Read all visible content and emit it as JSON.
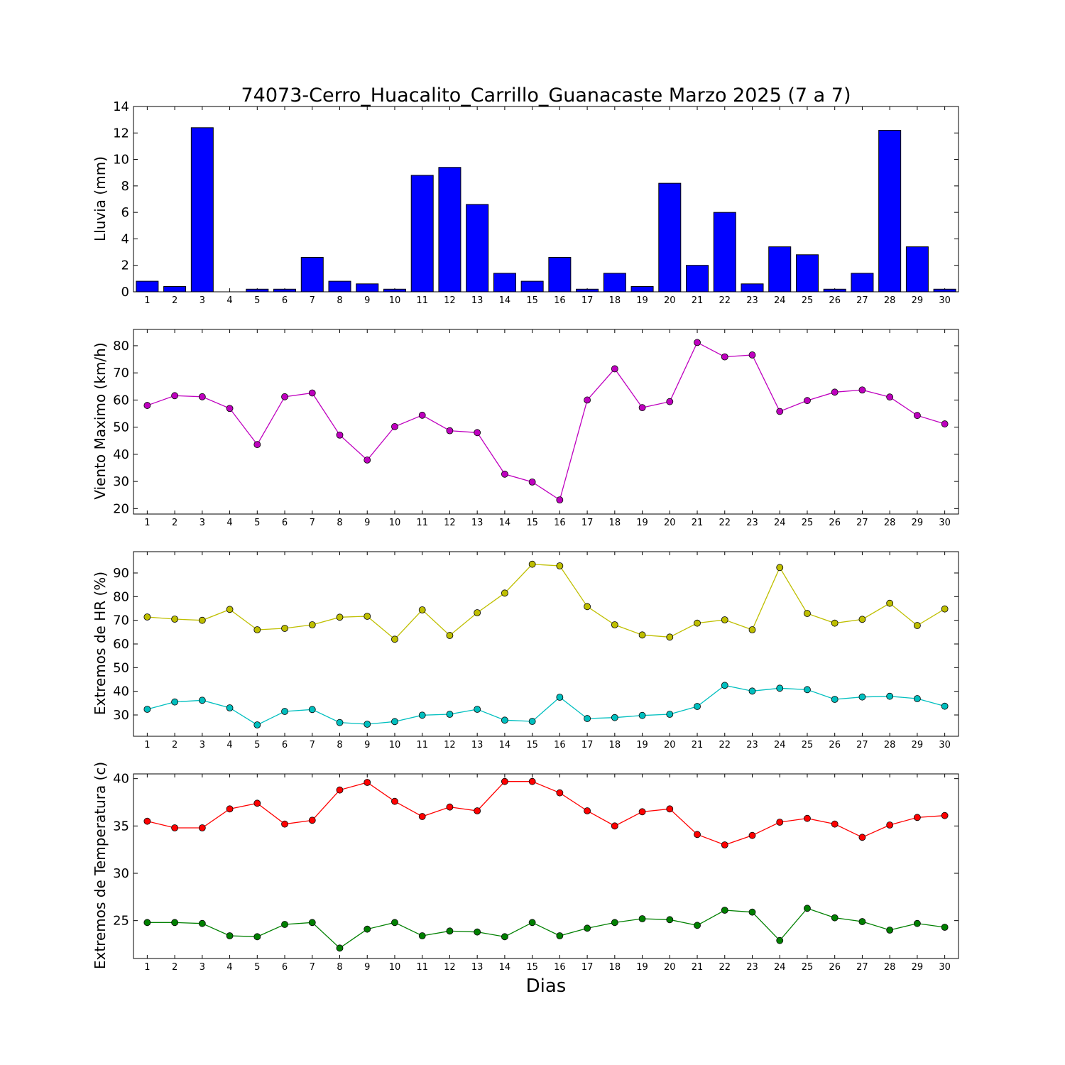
{
  "chart_data": [
    {
      "type": "bar",
      "title": "74073-Cerro_Huacalito_Carrillo_Guanacaste Marzo 2025  (7 a 7)",
      "ylabel": "Lluvia (mm)",
      "xlabel": "",
      "categories": [
        "1",
        "2",
        "3",
        "4",
        "5",
        "6",
        "7",
        "8",
        "9",
        "10",
        "11",
        "12",
        "13",
        "14",
        "15",
        "16",
        "17",
        "18",
        "19",
        "20",
        "21",
        "22",
        "23",
        "24",
        "25",
        "26",
        "27",
        "28",
        "29",
        "30"
      ],
      "values": [
        0.8,
        0.4,
        12.4,
        0.0,
        0.2,
        0.2,
        2.6,
        0.8,
        0.6,
        0.2,
        8.8,
        9.4,
        6.6,
        1.4,
        0.8,
        2.6,
        0.2,
        1.4,
        0.4,
        8.2,
        2.0,
        6.0,
        0.6,
        3.4,
        2.8,
        0.2,
        1.4,
        12.2,
        3.4,
        0.2
      ],
      "ylim": [
        0,
        14
      ],
      "yticks": [
        "0",
        "2",
        "4",
        "6",
        "8",
        "10",
        "12",
        "14"
      ],
      "ytick_values": [
        0,
        2,
        4,
        6,
        8,
        10,
        12,
        14
      ],
      "color": "#0000ff",
      "grid": false
    },
    {
      "type": "line",
      "title": "",
      "ylabel": "Viento Maximo (km/h)",
      "xlabel": "",
      "categories": [
        "1",
        "2",
        "3",
        "4",
        "5",
        "6",
        "7",
        "8",
        "9",
        "10",
        "11",
        "12",
        "13",
        "14",
        "15",
        "16",
        "17",
        "18",
        "19",
        "20",
        "21",
        "22",
        "23",
        "24",
        "25",
        "26",
        "27",
        "28",
        "29",
        "30"
      ],
      "series": [
        {
          "color": "#bf00bf",
          "values": [
            58.0,
            61.6,
            61.2,
            56.9,
            43.6,
            61.2,
            62.6,
            47.1,
            37.9,
            50.2,
            54.4,
            48.7,
            48.0,
            32.7,
            29.8,
            23.2,
            60.0,
            71.5,
            57.2,
            59.4,
            81.2,
            75.9,
            76.6,
            55.8,
            59.8,
            62.9,
            63.7,
            61.1,
            54.3,
            51.2
          ]
        }
      ],
      "ylim": [
        18,
        86
      ],
      "yticks": [
        "20",
        "30",
        "40",
        "50",
        "60",
        "70",
        "80"
      ],
      "ytick_values": [
        20,
        30,
        40,
        50,
        60,
        70,
        80
      ],
      "grid": false
    },
    {
      "type": "line",
      "title": "",
      "ylabel": "Extremos de HR (%)",
      "xlabel": "",
      "categories": [
        "1",
        "2",
        "3",
        "4",
        "5",
        "6",
        "7",
        "8",
        "9",
        "10",
        "11",
        "12",
        "13",
        "14",
        "15",
        "16",
        "17",
        "18",
        "19",
        "20",
        "21",
        "22",
        "23",
        "24",
        "25",
        "26",
        "27",
        "28",
        "29",
        "30"
      ],
      "series": [
        {
          "color": "#bfbf00",
          "values": [
            71.4,
            70.5,
            70.0,
            74.6,
            66.0,
            66.6,
            68.1,
            71.3,
            71.7,
            62.0,
            74.4,
            63.6,
            73.2,
            81.5,
            93.7,
            93.0,
            75.8,
            68.1,
            63.8,
            62.9,
            68.8,
            70.2,
            66.0,
            92.3,
            72.9,
            68.8,
            70.4,
            77.2,
            67.8,
            74.8
          ]
        },
        {
          "color": "#00bfbf",
          "values": [
            32.4,
            35.5,
            36.2,
            33.0,
            25.8,
            31.5,
            32.3,
            26.8,
            26.1,
            27.2,
            29.9,
            30.3,
            32.4,
            27.8,
            27.3,
            37.5,
            28.5,
            28.9,
            29.8,
            30.3,
            33.6,
            42.5,
            40.1,
            41.3,
            40.7,
            36.6,
            37.6,
            37.9,
            36.9,
            33.7
          ]
        }
      ],
      "ylim": [
        21,
        99
      ],
      "yticks": [
        "30",
        "40",
        "50",
        "60",
        "70",
        "80",
        "90"
      ],
      "ytick_values": [
        30,
        40,
        50,
        60,
        70,
        80,
        90
      ],
      "grid": false
    },
    {
      "type": "line",
      "title": "",
      "ylabel": "Extremos de Temperatura (c)",
      "xlabel": "Dias",
      "categories": [
        "1",
        "2",
        "3",
        "4",
        "5",
        "6",
        "7",
        "8",
        "9",
        "10",
        "11",
        "12",
        "13",
        "14",
        "15",
        "16",
        "17",
        "18",
        "19",
        "20",
        "21",
        "22",
        "23",
        "24",
        "25",
        "26",
        "27",
        "28",
        "29",
        "30"
      ],
      "series": [
        {
          "color": "#ff0000",
          "values": [
            35.5,
            34.8,
            34.8,
            36.8,
            37.4,
            35.2,
            35.6,
            38.8,
            39.6,
            37.6,
            36.0,
            37.0,
            36.6,
            39.7,
            39.7,
            38.5,
            36.6,
            35.0,
            36.5,
            36.8,
            34.1,
            33.0,
            34.0,
            35.4,
            35.8,
            35.2,
            33.8,
            35.1,
            35.9,
            36.1
          ]
        },
        {
          "color": "#008000",
          "values": [
            24.8,
            24.8,
            24.7,
            23.4,
            23.3,
            24.6,
            24.8,
            22.1,
            24.1,
            24.8,
            23.4,
            23.9,
            23.8,
            23.3,
            24.8,
            23.4,
            24.2,
            24.8,
            25.2,
            25.1,
            24.5,
            26.1,
            25.9,
            22.9,
            26.3,
            25.3,
            24.9,
            24.0,
            24.7,
            24.3
          ]
        }
      ],
      "ylim": [
        21,
        40.5
      ],
      "yticks": [
        "25",
        "30",
        "35",
        "40"
      ],
      "ytick_values": [
        25,
        30,
        35,
        40
      ],
      "grid": false
    }
  ]
}
